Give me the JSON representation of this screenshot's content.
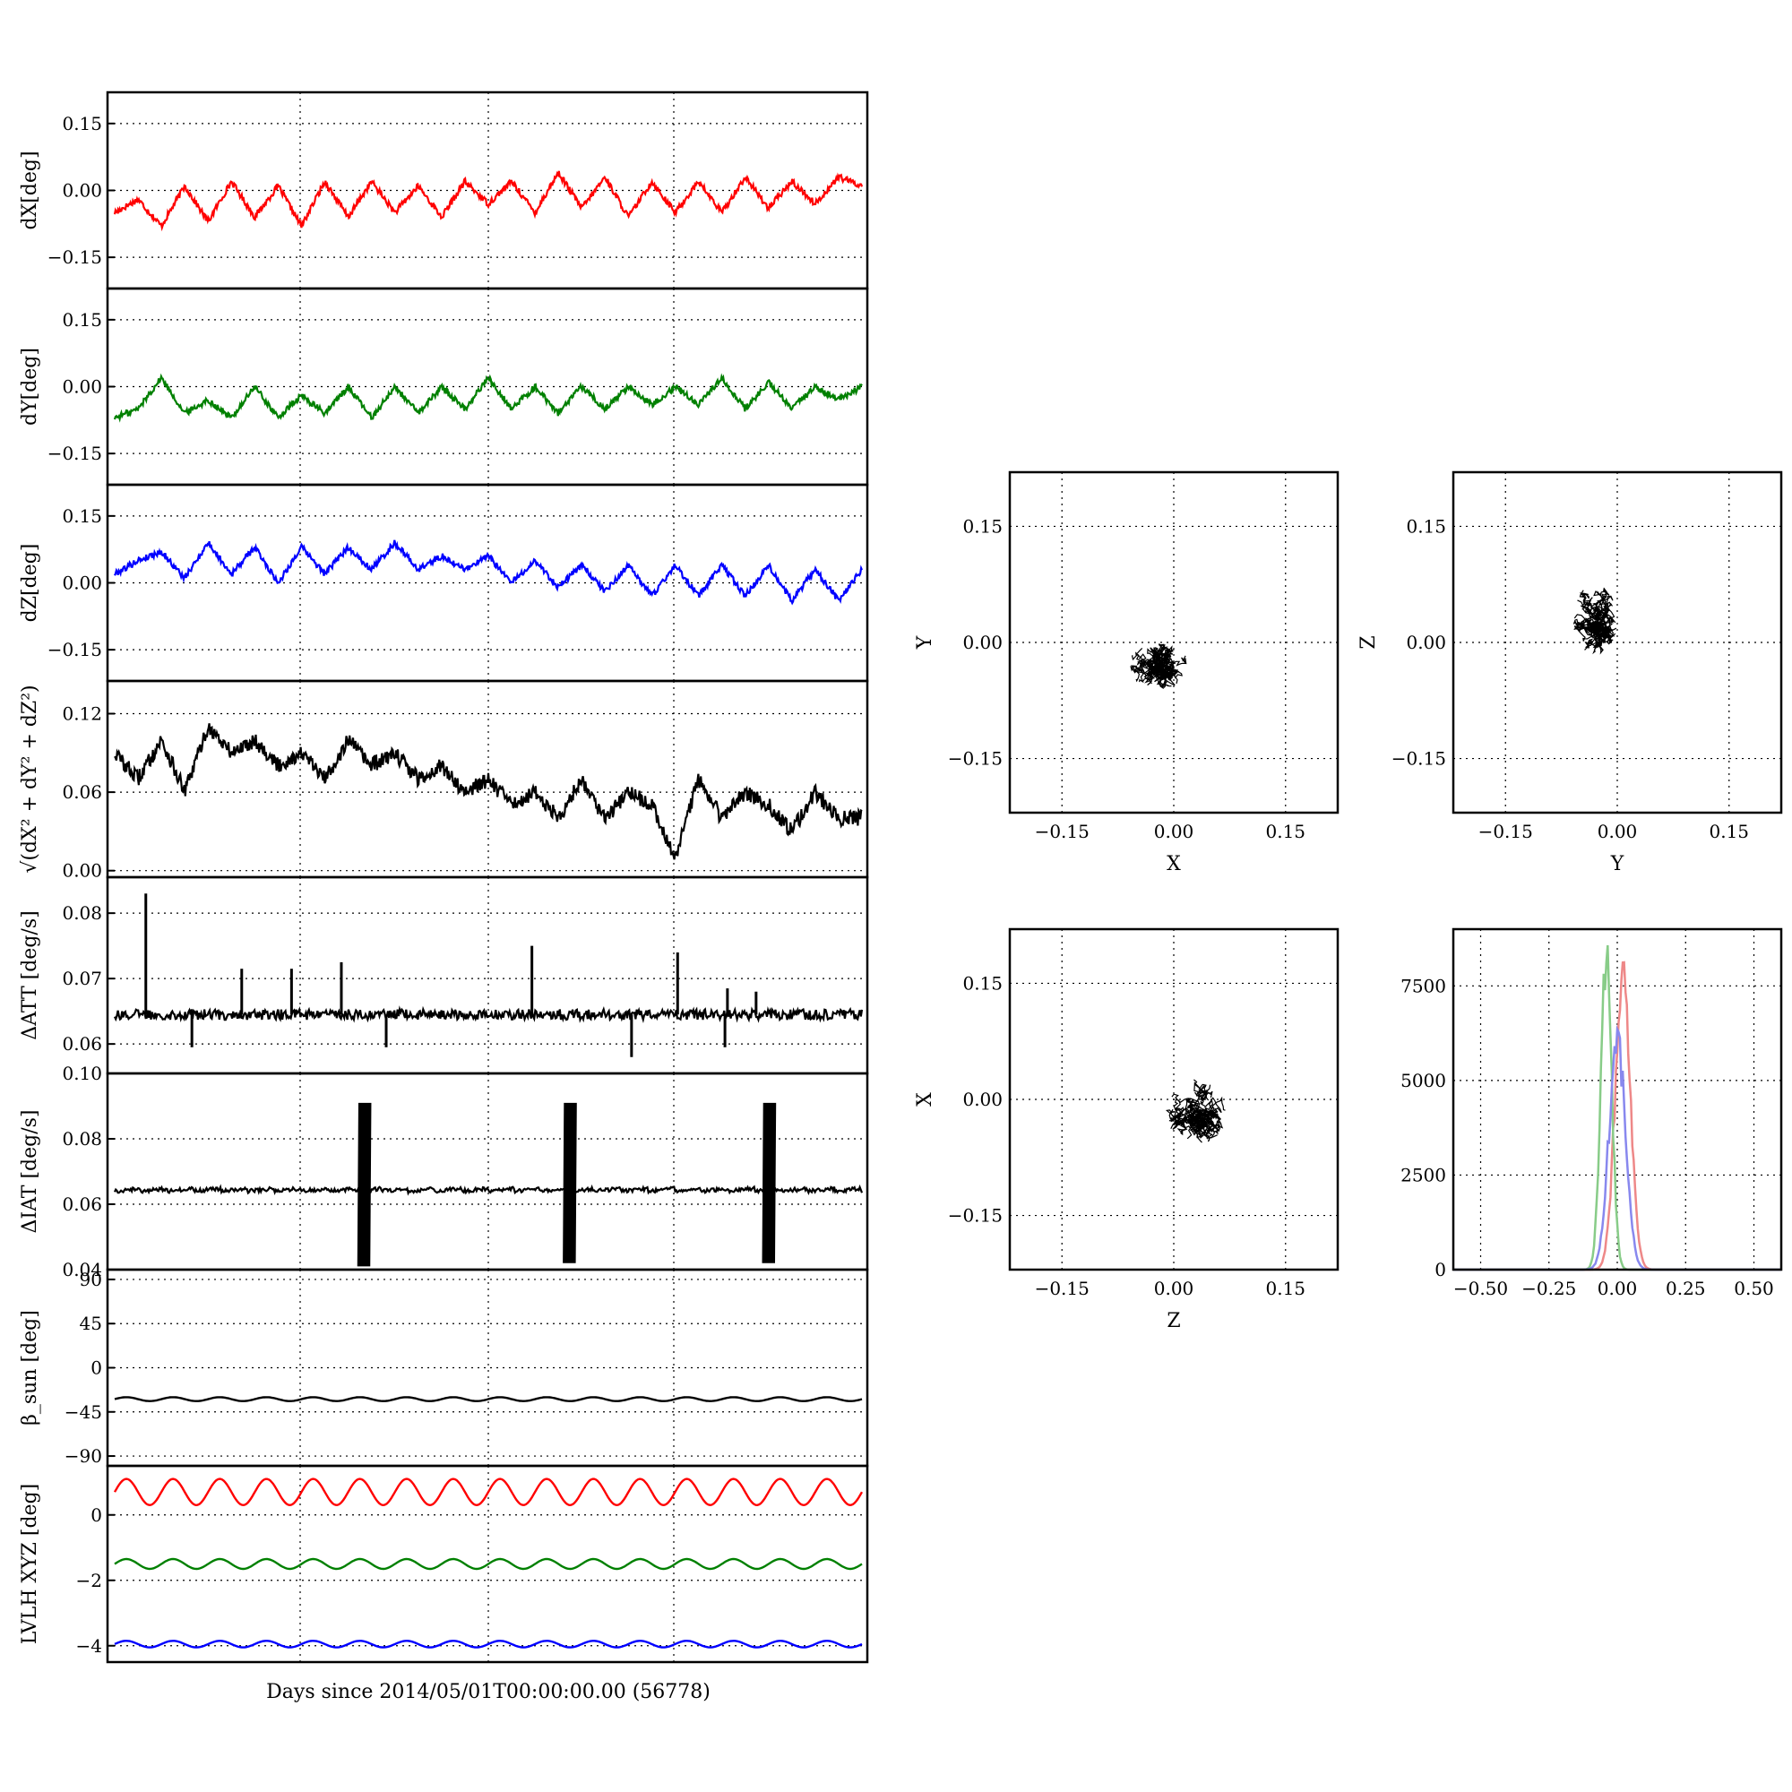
{
  "figure": {
    "xlabel": "Days since 2014/05/01T00:00:00.00 (56778)"
  },
  "chart_data": [
    {
      "id": "dx",
      "type": "line",
      "ylabel": "dX[deg]",
      "ylim": [
        -0.22,
        0.22
      ],
      "yticks": [
        -0.15,
        0.0,
        0.15
      ],
      "ytick_labels": [
        "−0.15",
        "0.00",
        "0.15"
      ],
      "color": "#ff0000",
      "grid": true,
      "series": [
        {
          "values": [
            -0.05,
            -0.02,
            -0.08,
            0.01,
            -0.07,
            0.02,
            -0.06,
            0.01,
            -0.08,
            0.02,
            -0.06,
            0.02,
            -0.05,
            0.01,
            -0.06,
            0.02,
            -0.03,
            0.02,
            -0.05,
            0.04,
            -0.04,
            0.03,
            -0.06,
            0.02,
            -0.05,
            0.02,
            -0.05,
            0.03,
            -0.04,
            0.02,
            -0.03,
            0.03,
            0.01
          ]
        }
      ]
    },
    {
      "id": "dy",
      "type": "line",
      "ylabel": "dY[deg]",
      "ylim": [
        -0.22,
        0.22
      ],
      "yticks": [
        -0.15,
        0.0,
        0.15
      ],
      "ytick_labels": [
        "−0.15",
        "0.00",
        "0.15"
      ],
      "color": "#008000",
      "grid": true,
      "series": [
        {
          "values": [
            -0.07,
            -0.05,
            0.02,
            -0.06,
            -0.03,
            -0.07,
            0.0,
            -0.07,
            -0.02,
            -0.06,
            0.0,
            -0.07,
            0.0,
            -0.06,
            0.0,
            -0.05,
            0.02,
            -0.05,
            0.0,
            -0.06,
            0.0,
            -0.05,
            0.0,
            -0.04,
            0.0,
            -0.04,
            0.02,
            -0.05,
            0.01,
            -0.05,
            0.0,
            -0.03,
            0.0
          ]
        }
      ]
    },
    {
      "id": "dz",
      "type": "line",
      "ylabel": "dZ[deg]",
      "ylim": [
        -0.22,
        0.22
      ],
      "yticks": [
        -0.15,
        0.0,
        0.15
      ],
      "ytick_labels": [
        "−0.15",
        "0.00",
        "0.15"
      ],
      "color": "#0000ff",
      "grid": true,
      "series": [
        {
          "values": [
            0.02,
            0.05,
            0.07,
            0.01,
            0.09,
            0.02,
            0.08,
            0.0,
            0.08,
            0.02,
            0.08,
            0.03,
            0.09,
            0.03,
            0.06,
            0.03,
            0.06,
            0.0,
            0.05,
            -0.01,
            0.04,
            -0.02,
            0.04,
            -0.03,
            0.04,
            -0.03,
            0.04,
            -0.03,
            0.04,
            -0.04,
            0.03,
            -0.04,
            0.03
          ]
        }
      ]
    },
    {
      "id": "dr",
      "type": "line",
      "ylabel": "√(dX² + dY² + dZ²)",
      "ylim": [
        -0.005,
        0.145
      ],
      "yticks": [
        0.0,
        0.06,
        0.12
      ],
      "ytick_labels": [
        "0.00",
        "0.06",
        "0.12"
      ],
      "color": "#000000",
      "grid": true,
      "series": [
        {
          "values": [
            0.09,
            0.07,
            0.1,
            0.06,
            0.11,
            0.09,
            0.1,
            0.08,
            0.09,
            0.07,
            0.1,
            0.08,
            0.09,
            0.07,
            0.08,
            0.06,
            0.07,
            0.05,
            0.06,
            0.04,
            0.07,
            0.04,
            0.06,
            0.05,
            0.01,
            0.07,
            0.04,
            0.06,
            0.05,
            0.03,
            0.06,
            0.04,
            0.04
          ]
        }
      ]
    },
    {
      "id": "datt",
      "type": "line",
      "ylabel": "ΔATT [deg/s]",
      "ylim": [
        0.0555,
        0.0855
      ],
      "yticks": [
        0.06,
        0.07,
        0.08
      ],
      "ytick_labels": [
        "0.06",
        "0.07",
        "0.08"
      ],
      "color": "#000000",
      "grid": true,
      "baseline": 0.0645,
      "spikes": [
        {
          "day": 2.5,
          "value": 0.083
        },
        {
          "day": 10.2,
          "value": 0.0715
        },
        {
          "day": 14.2,
          "value": 0.0715
        },
        {
          "day": 18.2,
          "value": 0.0725
        },
        {
          "day": 33.5,
          "value": 0.075
        },
        {
          "day": 45.2,
          "value": 0.074
        },
        {
          "day": 49.2,
          "value": 0.0685
        },
        {
          "day": 51.5,
          "value": 0.068
        }
      ],
      "dips": [
        {
          "day": 6.2,
          "value": 0.0595
        },
        {
          "day": 21.8,
          "value": 0.0595
        },
        {
          "day": 41.5,
          "value": 0.058
        },
        {
          "day": 49.0,
          "value": 0.0595
        }
      ]
    },
    {
      "id": "diat",
      "type": "line",
      "ylabel": "ΔIAT [deg/s]",
      "ylim": [
        0.04,
        0.1
      ],
      "yticks": [
        0.04,
        0.06,
        0.08,
        0.1
      ],
      "ytick_labels": [
        "0.04",
        "0.06",
        "0.08",
        "0.10"
      ],
      "color": "#000000",
      "grid": true,
      "baseline": 0.064,
      "bursts": [
        {
          "day": 20.0,
          "hi": 0.091,
          "lo": 0.041
        },
        {
          "day": 36.5,
          "hi": 0.091,
          "lo": 0.042
        },
        {
          "day": 52.5,
          "hi": 0.091,
          "lo": 0.042
        }
      ]
    },
    {
      "id": "beta",
      "type": "line",
      "ylabel": "β_sun [deg]",
      "ylim": [
        -100,
        100
      ],
      "yticks": [
        -90,
        -45,
        0,
        45,
        90
      ],
      "ytick_labels": [
        "−90",
        "−45",
        "0",
        "45",
        "90"
      ],
      "color": "#000000",
      "grid": true,
      "series": [
        {
          "mean": -32,
          "amplitude": 2
        }
      ]
    },
    {
      "id": "lvlh",
      "type": "line",
      "ylabel": "LVLH XYZ [deg]",
      "ylim": [
        -4.5,
        1.5
      ],
      "yticks": [
        -4,
        -2,
        0
      ],
      "ytick_labels": [
        "−4",
        "−2",
        "0"
      ],
      "grid": true,
      "series": [
        {
          "color": "#ff0000",
          "mean": 0.7,
          "amplitude": 0.4
        },
        {
          "color": "#008000",
          "mean": -1.5,
          "amplitude": 0.15
        },
        {
          "color": "#0000ff",
          "mean": -3.95,
          "amplitude": 0.1
        }
      ]
    },
    {
      "id": "scatter-xy",
      "type": "scatter",
      "xlabel": "X",
      "ylabel": "Y",
      "xlim": [
        -0.22,
        0.22
      ],
      "ylim": [
        -0.22,
        0.22
      ],
      "xticks": [
        -0.15,
        0.0,
        0.15
      ],
      "yticks": [
        -0.15,
        0.0,
        0.15
      ],
      "tick_labels": [
        "−0.15",
        "0.00",
        "0.15"
      ],
      "cloud": {
        "cx": -0.02,
        "cy": -0.03,
        "rx": 0.04,
        "ry": 0.03
      }
    },
    {
      "id": "scatter-yz",
      "type": "scatter",
      "xlabel": "Y",
      "ylabel": "Z",
      "xlim": [
        -0.22,
        0.22
      ],
      "ylim": [
        -0.22,
        0.22
      ],
      "xticks": [
        -0.15,
        0.0,
        0.15
      ],
      "yticks": [
        -0.15,
        0.0,
        0.15
      ],
      "tick_labels": [
        "−0.15",
        "0.00",
        "0.15"
      ],
      "cloud": {
        "cx": -0.03,
        "cy": 0.03,
        "rx": 0.03,
        "ry": 0.045
      }
    },
    {
      "id": "scatter-zx",
      "type": "scatter",
      "xlabel": "Z",
      "ylabel": "X",
      "xlim": [
        -0.22,
        0.22
      ],
      "ylim": [
        -0.22,
        0.22
      ],
      "xticks": [
        -0.15,
        0.0,
        0.15
      ],
      "yticks": [
        -0.15,
        0.0,
        0.15
      ],
      "tick_labels": [
        "−0.15",
        "0.00",
        "0.15"
      ],
      "cloud": {
        "cx": 0.03,
        "cy": -0.015,
        "rx": 0.04,
        "ry": 0.045
      }
    },
    {
      "id": "histogram",
      "type": "line",
      "xlim": [
        -0.6,
        0.6
      ],
      "ylim": [
        0,
        9000
      ],
      "xticks": [
        -0.5,
        -0.25,
        0.0,
        0.25,
        0.5
      ],
      "xtick_labels": [
        "−0.50",
        "−0.25",
        "0.00",
        "0.25",
        "0.50"
      ],
      "yticks": [
        0,
        2500,
        5000,
        7500
      ],
      "ytick_labels": [
        "0",
        "2500",
        "5000",
        "7500"
      ],
      "series": [
        {
          "color": "#ee8888",
          "center": 0.02,
          "width": 0.028,
          "peak": 7700
        },
        {
          "color": "#88cc88",
          "center": -0.04,
          "width": 0.02,
          "peak": 8500
        },
        {
          "color": "#8888ee",
          "center": 0.0,
          "width": 0.03,
          "peak": 6200
        }
      ]
    }
  ]
}
